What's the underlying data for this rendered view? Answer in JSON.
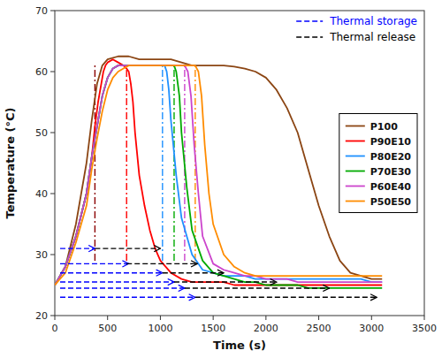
{
  "chart_data": {
    "type": "line",
    "xlabel": "Time (s)",
    "ylabel": "Temperature (°C)",
    "xlim": [
      0,
      3500
    ],
    "ylim": [
      20,
      70
    ],
    "xticks": [
      0,
      500,
      1000,
      1500,
      2000,
      2500,
      3000,
      3500
    ],
    "yticks": [
      20,
      30,
      40,
      50,
      60,
      70
    ],
    "grid": false,
    "legend": "right",
    "series": [
      {
        "name": "P100",
        "color": "#8B4513",
        "line_style": "solid",
        "x": [
          0,
          100,
          200,
          300,
          350,
          400,
          450,
          500,
          600,
          700,
          800,
          900,
          1000,
          1100,
          1200,
          1300,
          1400,
          1500,
          1600,
          1700,
          1800,
          1900,
          2000,
          2100,
          2200,
          2300,
          2400,
          2500,
          2600,
          2700,
          2800,
          2900,
          3000,
          3100
        ],
        "values": [
          25,
          28,
          35,
          45,
          52,
          58,
          61,
          62,
          62.5,
          62.5,
          62,
          62,
          62,
          62,
          61.5,
          61,
          61,
          61,
          61,
          60.8,
          60.5,
          60,
          59,
          57,
          54,
          50,
          44,
          38,
          33,
          29,
          27,
          26.5,
          26,
          26
        ]
      },
      {
        "name": "P90E10",
        "color": "#FF0000",
        "line_style": "solid",
        "x": [
          0,
          100,
          200,
          300,
          350,
          380,
          410,
          440,
          460,
          480,
          500,
          550,
          600,
          650,
          680,
          700,
          720,
          740,
          760,
          800,
          850,
          900,
          950,
          1000,
          1100,
          1200,
          1300,
          1400,
          1500,
          1600,
          1700,
          1800,
          1900,
          2000,
          2100,
          2200,
          2300,
          2400,
          2500,
          2600,
          2700,
          2800,
          2900,
          3000,
          3100
        ],
        "values": [
          25,
          28,
          33,
          40,
          46,
          51,
          55,
          58,
          60,
          61,
          61.5,
          62,
          61.5,
          61,
          60.5,
          60,
          58,
          55,
          50,
          43,
          38,
          34,
          31,
          29,
          27,
          26,
          25.5,
          25.5,
          25.5,
          25.5,
          25,
          25,
          25,
          25,
          25,
          25,
          25,
          25,
          25,
          25,
          25,
          25,
          25,
          25,
          25
        ]
      },
      {
        "name": "P80E20",
        "color": "#1E90FF",
        "line_style": "solid",
        "x": [
          0,
          100,
          200,
          300,
          350,
          400,
          450,
          500,
          550,
          600,
          650,
          700,
          750,
          800,
          900,
          1000,
          1020,
          1040,
          1060,
          1080,
          1100,
          1150,
          1200,
          1300,
          1400,
          1500,
          1600,
          1700,
          1800,
          1900,
          2000,
          2100,
          2200,
          2300,
          2400,
          2500,
          2600,
          2700,
          2800,
          2900,
          3000,
          3100
        ],
        "values": [
          25,
          28,
          33,
          40,
          46,
          51,
          56,
          59,
          60.5,
          61,
          61,
          61,
          61,
          61,
          61,
          61,
          61,
          61,
          60,
          57,
          52,
          43,
          36,
          30,
          27.5,
          27,
          26.5,
          26.5,
          26.5,
          26,
          26,
          26,
          26,
          26,
          26,
          26,
          26,
          26,
          26,
          26,
          25.5,
          25.5
        ]
      },
      {
        "name": "P70E30",
        "color": "#00AA00",
        "line_style": "solid",
        "x": [
          0,
          100,
          200,
          300,
          350,
          400,
          450,
          500,
          550,
          600,
          650,
          700,
          750,
          800,
          900,
          1000,
          1100,
          1130,
          1150,
          1180,
          1200,
          1250,
          1300,
          1400,
          1500,
          1600,
          1700,
          1800,
          1900,
          2000,
          2100,
          2200,
          2300,
          2400,
          2500,
          2600,
          2700,
          2800,
          2900,
          3000,
          3100
        ],
        "values": [
          25,
          28,
          33,
          40,
          46,
          51,
          56,
          59,
          60.5,
          61,
          61,
          61,
          61,
          61,
          61,
          61,
          61,
          61,
          60,
          56,
          50,
          41,
          34,
          29,
          27,
          26.5,
          26,
          25.5,
          25.5,
          25,
          25,
          25,
          25,
          24.5,
          24.5,
          24.5,
          24.5,
          24.5,
          24.5,
          24.5,
          24.5
        ]
      },
      {
        "name": "P60E40",
        "color": "#CC44CC",
        "line_style": "solid",
        "x": [
          0,
          100,
          200,
          300,
          350,
          400,
          450,
          500,
          550,
          600,
          650,
          700,
          750,
          800,
          900,
          1000,
          1100,
          1200,
          1230,
          1260,
          1290,
          1320,
          1360,
          1400,
          1500,
          1600,
          1700,
          1800,
          1900,
          2000,
          2100,
          2200,
          2300,
          2400,
          2500,
          2600,
          2700,
          2800,
          2900,
          3000,
          3100
        ],
        "values": [
          25,
          28,
          33,
          40,
          46,
          51,
          56,
          59,
          60.5,
          61,
          61,
          61,
          61,
          61,
          61,
          61,
          61,
          61,
          61,
          60,
          56,
          48,
          40,
          33,
          28.5,
          27.5,
          27,
          26.5,
          26.5,
          26,
          26,
          26,
          25.5,
          25.5,
          25.5,
          25.5,
          25.5,
          25.5,
          25.5,
          25.5,
          25.5
        ]
      },
      {
        "name": "P50E50",
        "color": "#FF8C00",
        "line_style": "solid",
        "x": [
          0,
          100,
          200,
          300,
          350,
          400,
          450,
          500,
          550,
          600,
          650,
          700,
          750,
          800,
          900,
          1000,
          1100,
          1200,
          1300,
          1330,
          1360,
          1390,
          1420,
          1460,
          1500,
          1600,
          1700,
          1800,
          1900,
          2000,
          2100,
          2200,
          2300,
          2400,
          2500,
          2600,
          2700,
          2800,
          2900,
          3000,
          3100
        ],
        "values": [
          25,
          27,
          32,
          38,
          44,
          49,
          53.5,
          57,
          59,
          60,
          60.5,
          61,
          61,
          61,
          61,
          61,
          61,
          61,
          61,
          61,
          60,
          56,
          48,
          40,
          35,
          30,
          28,
          27,
          26.5,
          26.5,
          26.5,
          26.5,
          26.5,
          26.5,
          26.5,
          26.5,
          26.5,
          26.5,
          26.5,
          26.5,
          26.5
        ]
      }
    ],
    "vert_lines": [
      {
        "x": 380,
        "color": "#8B0000",
        "y0": 29,
        "y1": 61,
        "line_style": "dashdot"
      },
      {
        "x": 680,
        "color": "#FF0000",
        "y0": 29,
        "y1": 61,
        "line_style": "dashdot"
      },
      {
        "x": 1020,
        "color": "#1E90FF",
        "y0": 29,
        "y1": 61,
        "line_style": "dashdot"
      },
      {
        "x": 1130,
        "color": "#00AA00",
        "y0": 29,
        "y1": 61,
        "line_style": "dashdot"
      },
      {
        "x": 1230,
        "color": "#CC44CC",
        "y0": 29,
        "y1": 61,
        "line_style": "dashdot"
      },
      {
        "x": 1330,
        "color": "#FF8C00",
        "y0": 29,
        "y1": 61,
        "line_style": "dashdot"
      }
    ],
    "arrow_legend": [
      {
        "name": "Thermal storage",
        "color": "blue",
        "line_style": "dashed"
      },
      {
        "name": "Thermal release",
        "color": "black",
        "line_style": "dashed"
      }
    ],
    "ts_arrows": [
      {
        "y": 31.0,
        "x0": 50,
        "x1": 380
      },
      {
        "y": 28.5,
        "x0": 50,
        "x1": 700
      },
      {
        "y": 27.0,
        "x0": 50,
        "x1": 1020
      },
      {
        "y": 25.5,
        "x0": 50,
        "x1": 1130
      },
      {
        "y": 24.5,
        "x0": 50,
        "x1": 1230
      },
      {
        "y": 23.0,
        "x0": 50,
        "x1": 1330
      }
    ],
    "tr_arrows": [
      {
        "y": 31.0,
        "x0": 380,
        "x1": 1000
      },
      {
        "y": 28.5,
        "x0": 680,
        "x1": 1350
      },
      {
        "y": 27.0,
        "x0": 1020,
        "x1": 1600
      },
      {
        "y": 25.5,
        "x0": 1130,
        "x1": 2100
      },
      {
        "y": 24.5,
        "x0": 1230,
        "x1": 2600
      },
      {
        "y": 23.0,
        "x0": 1330,
        "x1": 3050
      }
    ]
  }
}
